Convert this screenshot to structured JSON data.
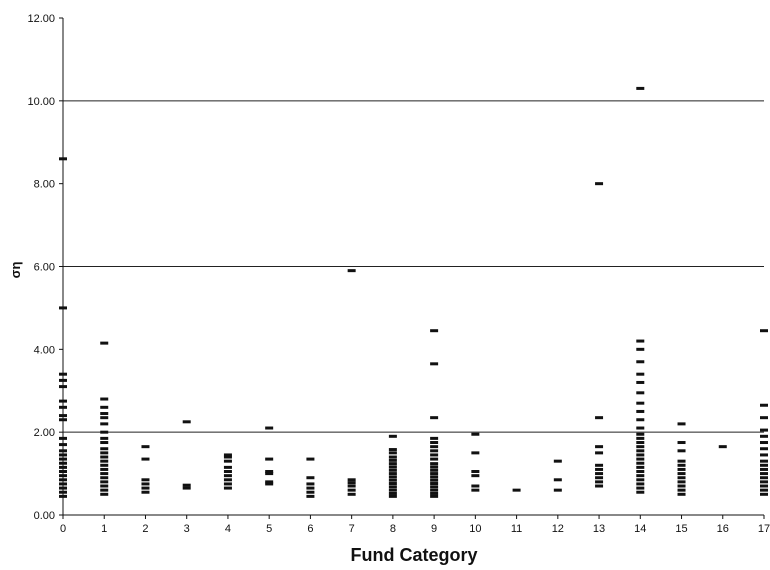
{
  "chart_data": {
    "type": "scatter",
    "title": "",
    "xlabel": "Fund Category",
    "ylabel": "ση",
    "xlim": [
      0,
      17
    ],
    "ylim": [
      0,
      12
    ],
    "x_ticks": [
      "0",
      "1",
      "2",
      "3",
      "4",
      "5",
      "6",
      "7",
      "8",
      "9",
      "10",
      "11",
      "12",
      "13",
      "14",
      "15",
      "16",
      "17"
    ],
    "y_ticks": [
      "0.00",
      "2.00",
      "4.00",
      "6.00",
      "8.00",
      "10.00",
      "12.00"
    ],
    "grid": "horizontal at 2.00, 6.00, 10.00",
    "colors": {
      "marks": "#111111",
      "grid": "#222222",
      "axis": "#111111"
    },
    "categories": [
      {
        "x": 0,
        "values": [
          0.45,
          0.55,
          0.65,
          0.75,
          0.85,
          0.95,
          1.05,
          1.15,
          1.25,
          1.35,
          1.45,
          1.55,
          1.7,
          1.85,
          2.3,
          2.4,
          2.6,
          2.75,
          3.1,
          3.25,
          3.4,
          5.0,
          8.6
        ]
      },
      {
        "x": 1,
        "values": [
          0.5,
          0.6,
          0.7,
          0.8,
          0.9,
          1.0,
          1.1,
          1.2,
          1.3,
          1.4,
          1.5,
          1.6,
          1.75,
          1.85,
          2.0,
          2.2,
          2.35,
          2.45,
          2.6,
          2.8,
          4.15
        ]
      },
      {
        "x": 2,
        "values": [
          0.55,
          0.65,
          0.75,
          0.85,
          1.35,
          1.65
        ]
      },
      {
        "x": 3,
        "values": [
          0.65,
          0.72,
          2.25
        ]
      },
      {
        "x": 4,
        "values": [
          0.65,
          0.75,
          0.85,
          0.95,
          1.05,
          1.15,
          1.3,
          1.4,
          1.45
        ]
      },
      {
        "x": 5,
        "values": [
          0.75,
          0.8,
          1.0,
          1.05,
          1.35,
          2.1
        ]
      },
      {
        "x": 6,
        "values": [
          0.45,
          0.55,
          0.65,
          0.75,
          0.9,
          1.35
        ]
      },
      {
        "x": 7,
        "values": [
          0.5,
          0.6,
          0.7,
          0.78,
          0.85,
          5.9
        ]
      },
      {
        "x": 8,
        "values": [
          0.45,
          0.52,
          0.6,
          0.68,
          0.76,
          0.84,
          0.92,
          1.0,
          1.08,
          1.16,
          1.24,
          1.32,
          1.4,
          1.5,
          1.58,
          1.9
        ]
      },
      {
        "x": 9,
        "values": [
          0.45,
          0.52,
          0.6,
          0.68,
          0.76,
          0.84,
          0.92,
          1.0,
          1.08,
          1.16,
          1.24,
          1.35,
          1.45,
          1.55,
          1.65,
          1.75,
          1.85,
          2.35,
          3.65,
          4.45
        ]
      },
      {
        "x": 10,
        "values": [
          0.6,
          0.7,
          0.95,
          1.05,
          1.5,
          1.95
        ]
      },
      {
        "x": 11,
        "values": [
          0.6
        ]
      },
      {
        "x": 12,
        "values": [
          0.6,
          0.85,
          1.3
        ]
      },
      {
        "x": 13,
        "values": [
          0.7,
          0.8,
          0.9,
          1.0,
          1.1,
          1.2,
          1.5,
          1.65,
          2.35,
          8.0
        ]
      },
      {
        "x": 14,
        "values": [
          0.55,
          0.65,
          0.75,
          0.85,
          0.95,
          1.05,
          1.15,
          1.25,
          1.35,
          1.45,
          1.55,
          1.65,
          1.75,
          1.85,
          1.95,
          2.1,
          2.3,
          2.5,
          2.7,
          2.95,
          3.2,
          3.4,
          3.7,
          4.0,
          4.2,
          10.3
        ]
      },
      {
        "x": 15,
        "values": [
          0.5,
          0.6,
          0.7,
          0.8,
          0.9,
          1.0,
          1.1,
          1.2,
          1.3,
          1.55,
          1.75,
          2.2
        ]
      },
      {
        "x": 16,
        "values": [
          1.65
        ]
      },
      {
        "x": 17,
        "values": [
          0.5,
          0.6,
          0.7,
          0.8,
          0.9,
          1.0,
          1.1,
          1.2,
          1.3,
          1.45,
          1.6,
          1.75,
          1.9,
          2.05,
          2.35,
          2.65,
          4.45
        ]
      }
    ]
  }
}
